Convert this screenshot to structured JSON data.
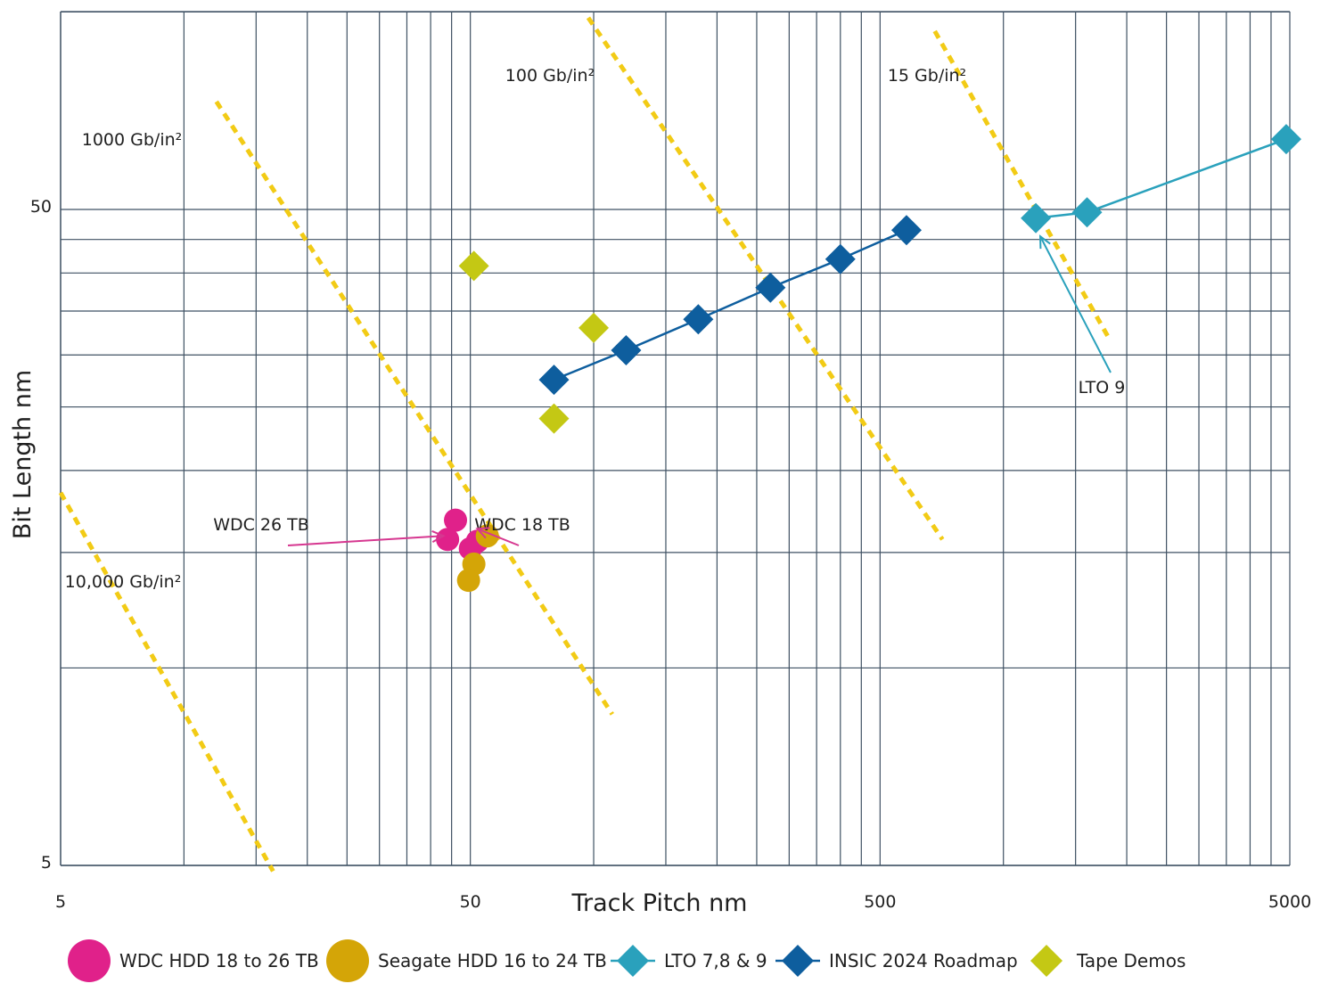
{
  "chart_data": {
    "type": "scatter",
    "xlabel": "Track Pitch nm",
    "ylabel": "Bit Length nm",
    "xscale": "log",
    "yscale": "log",
    "xlim": [
      5,
      5000
    ],
    "ylim": [
      5,
      80
    ],
    "x_ticks": [
      {
        "value": 5,
        "label": "5"
      },
      {
        "value": 50,
        "label": "50"
      },
      {
        "value": 500,
        "label": "500"
      },
      {
        "value": 5000,
        "label": "5000"
      }
    ],
    "y_ticks": [
      {
        "value": 5,
        "label": "5"
      },
      {
        "value": 50,
        "label": "50"
      }
    ],
    "grid": true,
    "legend_position": "bottom",
    "series": [
      {
        "name": "WDC HDD 18 to 26 TB",
        "marker": "circle",
        "color": "#e0218a",
        "points": [
          [
            44,
            15.7
          ],
          [
            46,
            16.8
          ],
          [
            50,
            15.2
          ],
          [
            52,
            15.6
          ]
        ]
      },
      {
        "name": "Seagate HDD 16 to 24 TB",
        "marker": "circle",
        "color": "#d4a507",
        "points": [
          [
            55,
            15.9
          ],
          [
            51,
            14.4
          ],
          [
            49.5,
            13.6
          ]
        ]
      },
      {
        "name": "LTO 7,8 & 9",
        "marker": "diamond",
        "color": "#2aa1bc",
        "line": true,
        "points": [
          [
            1200,
            48.5
          ],
          [
            1600,
            49.5
          ],
          [
            4900,
            64
          ]
        ]
      },
      {
        "name": "INSIC 2024 Roadmap",
        "marker": "diamond",
        "color": "#0e5e9e",
        "line": true,
        "points": [
          [
            80,
            27.5
          ],
          [
            120,
            30.5
          ],
          [
            180,
            34
          ],
          [
            270,
            38
          ],
          [
            400,
            42
          ],
          [
            580,
            46.5
          ]
        ]
      },
      {
        "name": "Tape Demos",
        "marker": "diamond",
        "color": "#c4c814",
        "points": [
          [
            51,
            41
          ],
          [
            100,
            33
          ],
          [
            80,
            24
          ]
        ]
      }
    ],
    "density_lines": [
      {
        "label": "1000 Gb/in²",
        "points": [
          [
            12,
            73
          ],
          [
            111,
            8.5
          ]
        ]
      },
      {
        "label": "100 Gb/in²",
        "points": [
          [
            97,
            98
          ],
          [
            710,
            15.7
          ]
        ]
      },
      {
        "label": "15 Gb/in²",
        "points": [
          [
            680,
            93.5
          ],
          [
            1800,
            32
          ]
        ]
      },
      {
        "label": "10,000 Gb/in²",
        "points": [
          [
            5,
            18.5
          ],
          [
            16.5,
            4.9
          ]
        ]
      }
    ],
    "annotations": [
      {
        "text": "WDC 26 TB",
        "target": [
          43,
          15.9
        ]
      },
      {
        "text": "WDC 18 TB",
        "target": [
          52,
          16.3
        ]
      },
      {
        "text": "LTO 9",
        "target": [
          1230,
          45.5
        ]
      }
    ]
  },
  "colors": {
    "grid": "#3f5163",
    "density_line": "#f2cb15",
    "callout_pink": "#d63790",
    "callout_teal": "#2aa1bc"
  }
}
